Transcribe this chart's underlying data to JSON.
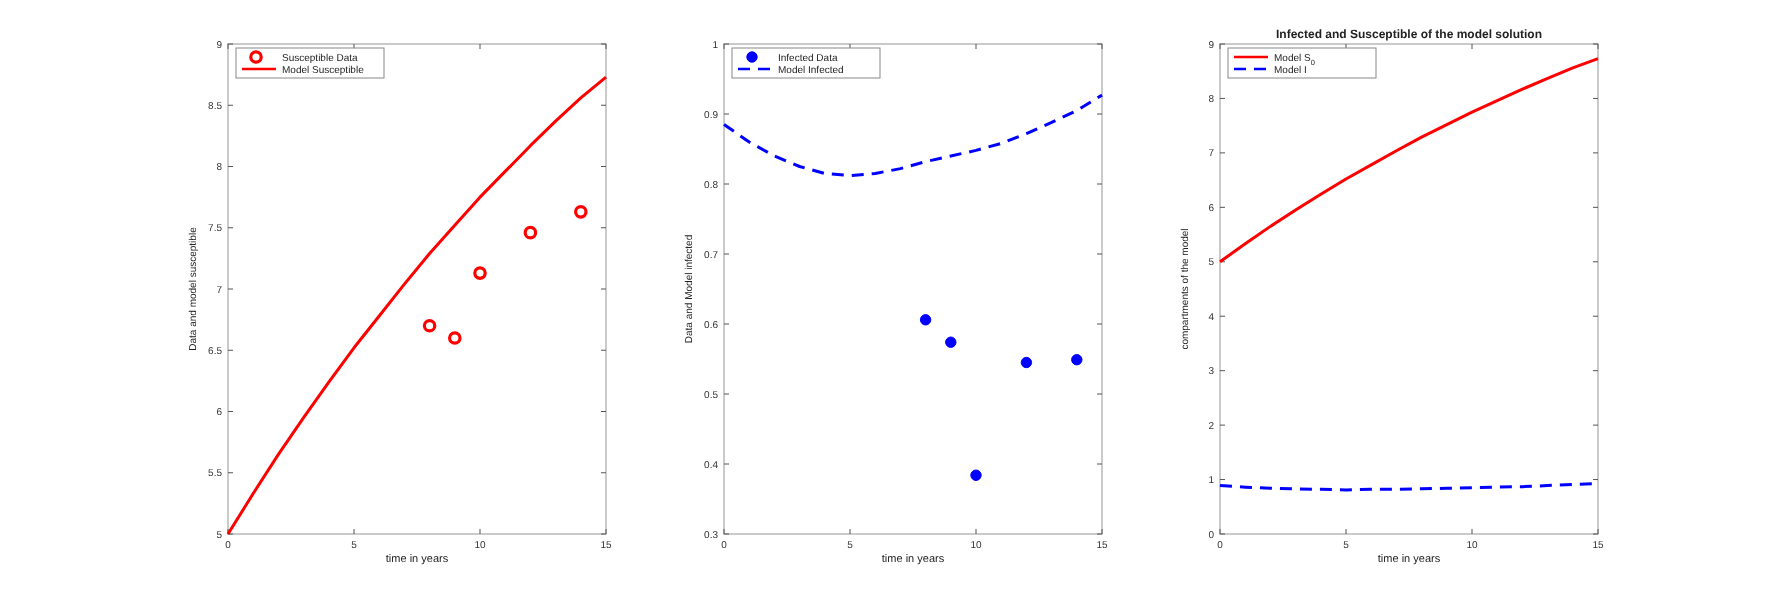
{
  "chart_data": [
    {
      "type": "line",
      "xlabel": "time in years",
      "ylabel": "Data and model susceptible",
      "xlim": [
        0,
        15
      ],
      "xticks": [
        0,
        5,
        10,
        15
      ],
      "ylim": [
        5,
        9
      ],
      "yticks": [
        5,
        5.5,
        6,
        6.5,
        7,
        7.5,
        8,
        8.5,
        9
      ],
      "legend": "top left",
      "grid": false,
      "series": [
        {
          "name": "Susceptible Data",
          "type": "scatter",
          "marker": "circle",
          "color": "#ff0000",
          "x": [
            8,
            9,
            10,
            12,
            14
          ],
          "values": [
            6.7,
            6.6,
            7.13,
            7.46,
            7.63
          ]
        },
        {
          "name": "Model Susceptible",
          "line_style": "solid",
          "color": "#ff0000",
          "x": [
            0,
            1,
            2,
            3,
            4,
            5,
            6,
            7,
            8,
            9,
            10,
            11,
            12,
            13,
            14,
            15
          ],
          "values": [
            5,
            5.33,
            5.65,
            5.95,
            6.24,
            6.52,
            6.78,
            7.04,
            7.29,
            7.52,
            7.75,
            7.96,
            8.17,
            8.37,
            8.56,
            8.73
          ]
        }
      ]
    },
    {
      "type": "line",
      "xlabel": "time in years",
      "ylabel": "Data and Model infected",
      "xlim": [
        0,
        15
      ],
      "xticks": [
        0,
        5,
        10,
        15
      ],
      "ylim": [
        0.3,
        1
      ],
      "yticks": [
        0.3,
        0.4,
        0.5,
        0.6,
        0.7,
        0.8,
        0.9,
        1
      ],
      "legend": "top left",
      "grid": false,
      "series": [
        {
          "name": "Infected Data",
          "type": "scatter",
          "marker": "circle",
          "color": "#0000ff",
          "x": [
            8,
            9,
            10,
            12,
            14
          ],
          "values": [
            0.606,
            0.574,
            0.384,
            0.545,
            0.549
          ]
        },
        {
          "name": "Model Infected",
          "line_style": "dashed",
          "color": "#0000ff",
          "x": [
            0,
            1,
            2,
            3,
            4,
            5,
            6,
            7,
            8,
            9,
            10,
            11,
            12,
            13,
            14,
            15
          ],
          "values": [
            0.885,
            0.86,
            0.84,
            0.825,
            0.815,
            0.812,
            0.815,
            0.822,
            0.832,
            0.84,
            0.848,
            0.858,
            0.872,
            0.888,
            0.905,
            0.927
          ]
        }
      ]
    },
    {
      "type": "line",
      "title": "Infected and Susceptible of the model solution",
      "xlabel": "time in years",
      "ylabel": "compartments of the model",
      "xlim": [
        0,
        15
      ],
      "xticks": [
        0,
        5,
        10,
        15
      ],
      "ylim": [
        0,
        9
      ],
      "yticks": [
        0,
        1,
        2,
        3,
        4,
        5,
        6,
        7,
        8,
        9
      ],
      "legend": "top left",
      "grid": false,
      "series": [
        {
          "name": "Model S$_{0}$",
          "line_style": "solid",
          "color": "#ff0000",
          "x": [
            0,
            1,
            2,
            3,
            4,
            5,
            6,
            7,
            8,
            9,
            10,
            11,
            12,
            13,
            14,
            15
          ],
          "values": [
            5,
            5.33,
            5.65,
            5.95,
            6.24,
            6.52,
            6.78,
            7.04,
            7.29,
            7.52,
            7.75,
            7.96,
            8.17,
            8.37,
            8.56,
            8.73
          ]
        },
        {
          "name": "Model I",
          "line_style": "dashed",
          "color": "#0000ff",
          "x": [
            0,
            1,
            2,
            3,
            4,
            5,
            6,
            7,
            8,
            9,
            10,
            11,
            12,
            13,
            14,
            15
          ],
          "values": [
            0.89,
            0.86,
            0.84,
            0.83,
            0.82,
            0.81,
            0.82,
            0.82,
            0.83,
            0.84,
            0.85,
            0.86,
            0.87,
            0.89,
            0.91,
            0.93
          ]
        }
      ]
    }
  ]
}
